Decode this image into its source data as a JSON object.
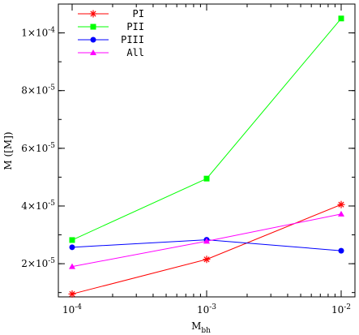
{
  "chart_data": {
    "type": "line",
    "xlabel": "M",
    "xlabel_sub": "bh",
    "ylabel": "M ([M])",
    "xscale": "log",
    "xlim": [
      0.0001,
      0.01
    ],
    "ylim": [
      8.5e-06,
      0.00011
    ],
    "x": [
      0.0001,
      0.001,
      0.01
    ],
    "x_ticks": [
      {
        "value": 0.0001,
        "base": "10",
        "exp": "-4"
      },
      {
        "value": 0.001,
        "base": "10",
        "exp": "-3"
      },
      {
        "value": 0.01,
        "base": "10",
        "exp": "-2"
      }
    ],
    "y_ticks": [
      {
        "value": 2e-05,
        "base": "2×10",
        "exp": "-5"
      },
      {
        "value": 4e-05,
        "base": "4×10",
        "exp": "-5"
      },
      {
        "value": 6e-05,
        "base": "6×10",
        "exp": "-5"
      },
      {
        "value": 8e-05,
        "base": "8×10",
        "exp": "-5"
      },
      {
        "value": 0.0001,
        "base": "1×10",
        "exp": "-4"
      }
    ],
    "legend_position": "top-left",
    "grid": false,
    "series": [
      {
        "name": "PI",
        "color": "#ff0000",
        "marker": "star",
        "values": [
          9.5e-06,
          2.15e-05,
          4.05e-05
        ]
      },
      {
        "name": "PII",
        "color": "#00ff00",
        "marker": "square",
        "values": [
          2.82e-05,
          4.95e-05,
          0.000105
        ]
      },
      {
        "name": "PIII",
        "color": "#0000ff",
        "marker": "circle",
        "values": [
          2.57e-05,
          2.83e-05,
          2.45e-05
        ]
      },
      {
        "name": "All",
        "color": "#ff00ff",
        "marker": "triangle",
        "values": [
          1.9e-05,
          2.78e-05,
          3.72e-05
        ]
      }
    ]
  }
}
